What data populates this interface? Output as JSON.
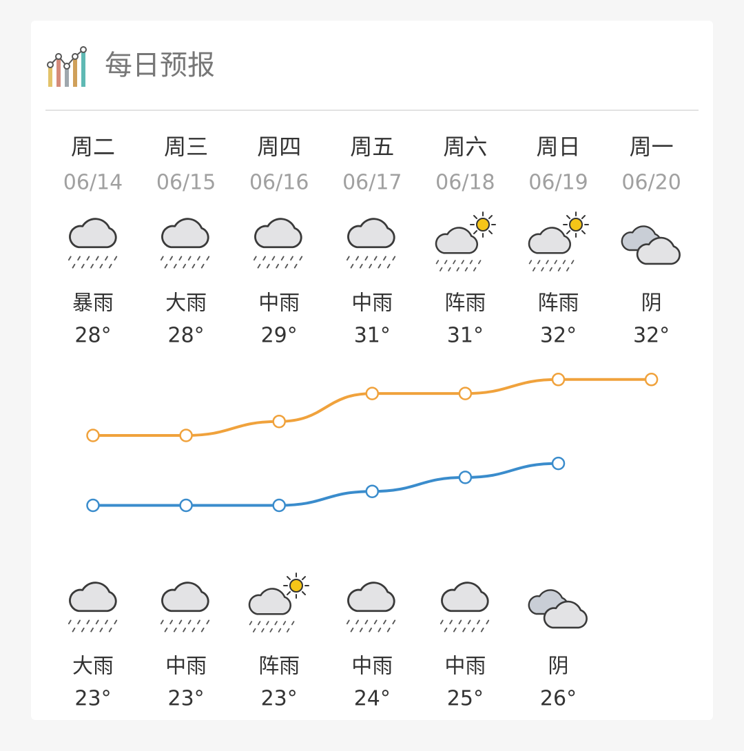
{
  "forecast": {
    "title": "每日预报",
    "days": [
      {
        "weekday": "周二",
        "date": "06/14",
        "day_weather": "暴雨",
        "high": {
          "value": 28,
          "label": "28°"
        },
        "night_weather": "大雨",
        "low": {
          "value": 23,
          "label": "23°"
        }
      },
      {
        "weekday": "周三",
        "date": "06/15",
        "day_weather": "大雨",
        "high": {
          "value": 28,
          "label": "28°"
        },
        "night_weather": "中雨",
        "low": {
          "value": 23,
          "label": "23°"
        }
      },
      {
        "weekday": "周四",
        "date": "06/16",
        "day_weather": "中雨",
        "high": {
          "value": 29,
          "label": "29°"
        },
        "night_weather": "阵雨",
        "low": {
          "value": 23,
          "label": "23°"
        }
      },
      {
        "weekday": "周五",
        "date": "06/17",
        "day_weather": "中雨",
        "high": {
          "value": 31,
          "label": "31°"
        },
        "night_weather": "中雨",
        "low": {
          "value": 24,
          "label": "24°"
        }
      },
      {
        "weekday": "周六",
        "date": "06/18",
        "day_weather": "阵雨",
        "high": {
          "value": 31,
          "label": "31°"
        },
        "night_weather": "中雨",
        "low": {
          "value": 25,
          "label": "25°"
        }
      },
      {
        "weekday": "周日",
        "date": "06/19",
        "day_weather": "阵雨",
        "high": {
          "value": 32,
          "label": "32°"
        },
        "night_weather": "阴",
        "low": {
          "value": 26,
          "label": "26°"
        }
      },
      {
        "weekday": "周一",
        "date": "06/20",
        "day_weather": "阴",
        "high": {
          "value": 32,
          "label": "32°"
        }
      }
    ],
    "high_color": "#f0a23c",
    "low_color": "#3a8ccc"
  }
}
